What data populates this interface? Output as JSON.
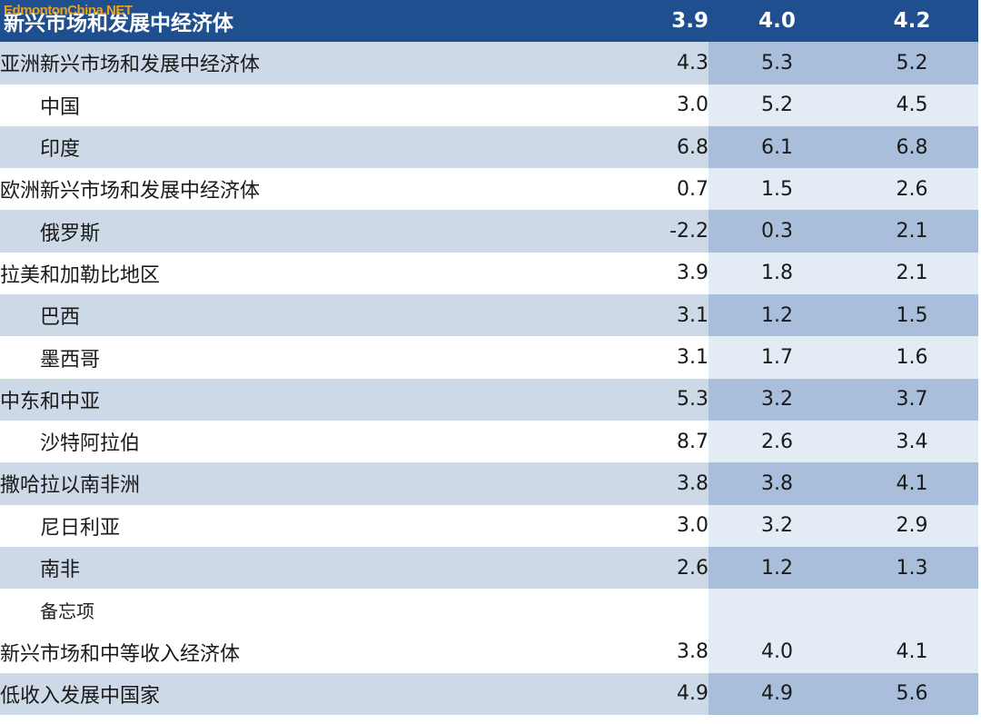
{
  "watermark": "EdmontonChina.NET",
  "header": {
    "label": "新兴市场和发展中经济体",
    "values": [
      "3.9",
      "4.0",
      "4.2"
    ]
  },
  "rows": [
    {
      "label": "亚洲新兴市场和发展中经济体",
      "values": [
        "4.3",
        "5.3",
        "5.2"
      ]
    },
    {
      "label": "中国",
      "values": [
        "3.0",
        "5.2",
        "4.5"
      ]
    },
    {
      "label": "印度",
      "values": [
        "6.8",
        "6.1",
        "6.8"
      ]
    },
    {
      "label": "欧洲新兴市场和发展中经济体",
      "values": [
        "0.7",
        "1.5",
        "2.6"
      ]
    },
    {
      "label": "俄罗斯",
      "values": [
        "-2.2",
        "0.3",
        "2.1"
      ]
    },
    {
      "label": "拉美和加勒比地区",
      "values": [
        "3.9",
        "1.8",
        "2.1"
      ]
    },
    {
      "label": "巴西",
      "values": [
        "3.1",
        "1.2",
        "1.5"
      ]
    },
    {
      "label": "墨西哥",
      "values": [
        "3.1",
        "1.7",
        "1.6"
      ]
    },
    {
      "label": "中东和中亚",
      "values": [
        "5.3",
        "3.2",
        "3.7"
      ]
    },
    {
      "label": "沙特阿拉伯",
      "values": [
        "8.7",
        "2.6",
        "3.4"
      ]
    },
    {
      "label": "撒哈拉以南非洲",
      "values": [
        "3.8",
        "3.8",
        "4.1"
      ]
    },
    {
      "label": "尼日利亚",
      "values": [
        "3.0",
        "3.2",
        "2.9"
      ]
    },
    {
      "label": "南非",
      "values": [
        "2.6",
        "1.2",
        "1.3"
      ]
    },
    {
      "label": "备忘项",
      "values": [
        "",
        "",
        ""
      ]
    },
    {
      "label": "新兴市场和中等收入经济体",
      "values": [
        "3.8",
        "4.0",
        "4.1"
      ]
    },
    {
      "label": "低收入发展中国家",
      "values": [
        "4.9",
        "4.9",
        "5.6"
      ]
    }
  ]
}
